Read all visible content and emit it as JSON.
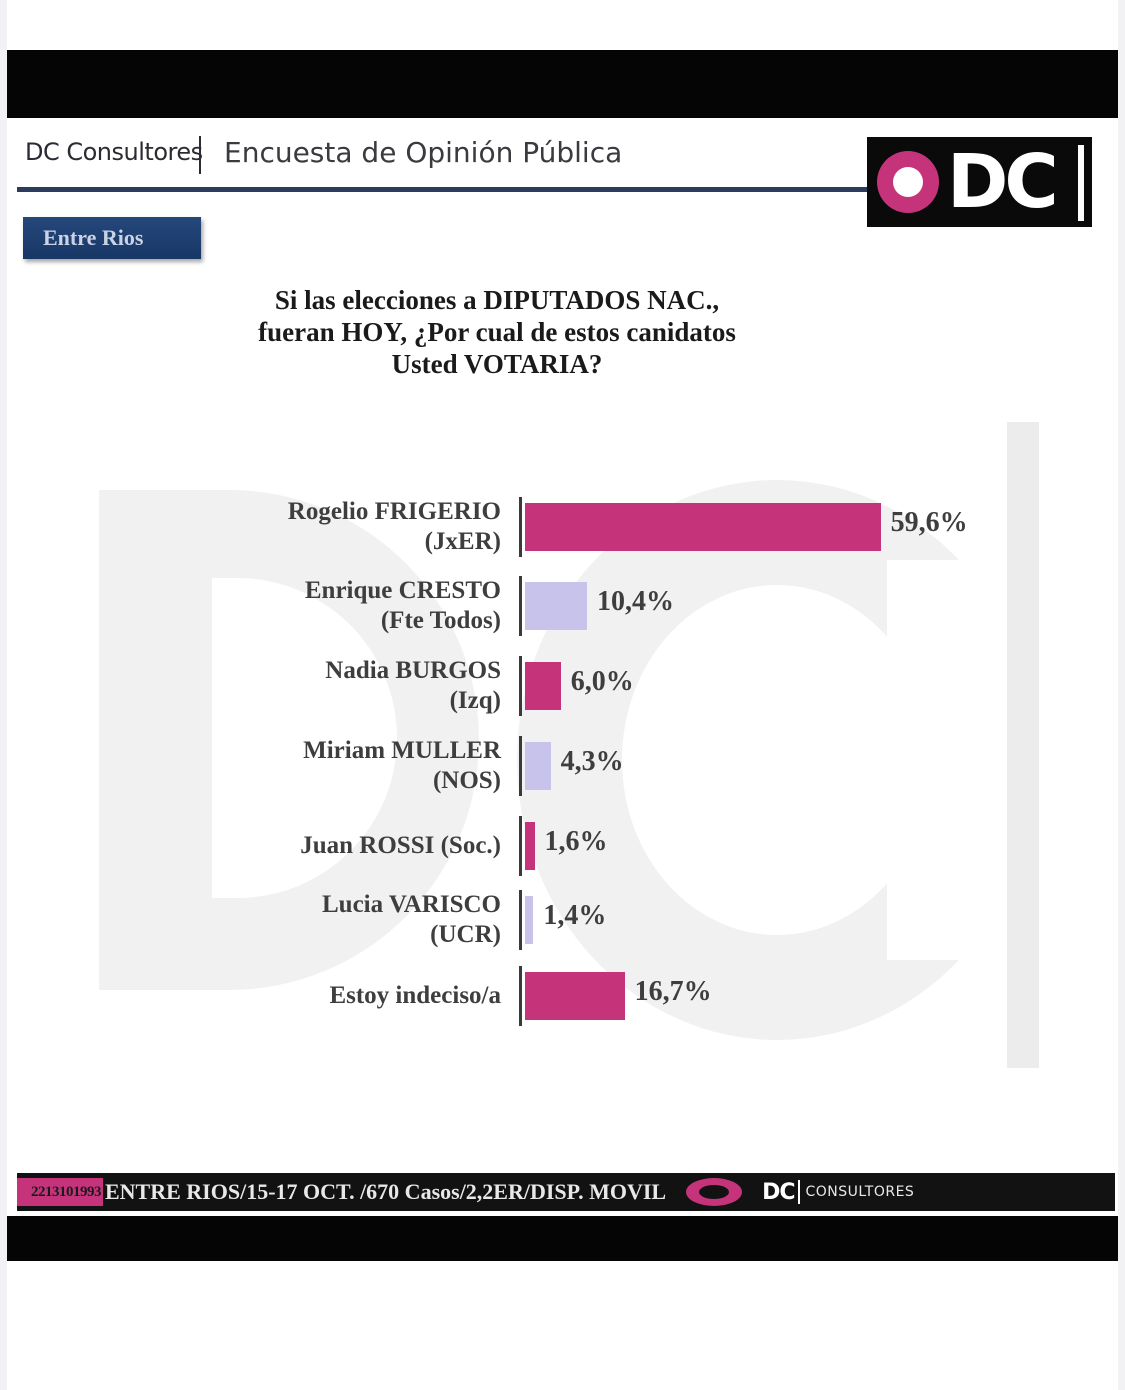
{
  "header": {
    "brand": "DC Consultores",
    "title": "Encuesta de Opinión Pública",
    "logo_text": "DC"
  },
  "region_tag": "Entre Rios",
  "question_lines": [
    "Si las elecciones a DIPUTADOS NAC.,",
    "fueran HOY, ¿Por cual de estos canidatos",
    "Usted VOTARIA?"
  ],
  "colors": {
    "magenta": "#c5347b",
    "lavender": "#c8c3ea",
    "navy": "#1f4174"
  },
  "chart_data": {
    "type": "bar",
    "orientation": "horizontal",
    "title": "Si las elecciones a DIPUTADOS NAC., fueran HOY, ¿Por cual de estos canidatos Usted VOTARIA?",
    "xlabel": "",
    "ylabel": "",
    "xlim": [
      0,
      60
    ],
    "unit": "%",
    "categories": [
      [
        "Rogelio FRIGERIO",
        "(JxER)"
      ],
      [
        "Enrique CRESTO",
        "(Fte Todos)"
      ],
      [
        "Nadia BURGOS",
        "(Izq)"
      ],
      [
        "Miriam MULLER",
        "(NOS)"
      ],
      [
        "Juan ROSSI (Soc.)"
      ],
      [
        "Lucia VARISCO",
        "(UCR)"
      ],
      [
        "Estoy indeciso/a"
      ]
    ],
    "values": [
      59.6,
      10.4,
      6.0,
      4.3,
      1.6,
      1.4,
      16.7
    ],
    "value_labels": [
      "59,6%",
      "10,4%",
      "6,0%",
      "4,3%",
      "1,6%",
      "1,4%",
      "16,7%"
    ],
    "bar_colors": [
      "#c5347b",
      "#c8c3ea",
      "#c5347b",
      "#c8c3ea",
      "#c5347b",
      "#c8c3ea",
      "#c5347b"
    ]
  },
  "footer": {
    "phone": "2213101993",
    "info": "ENTRE RIOS/15-17 OCT. /670 Casos/2,2ER/DISP. MOVIL",
    "logo_text": "DC",
    "logo_sub": "CONSULTORES"
  }
}
